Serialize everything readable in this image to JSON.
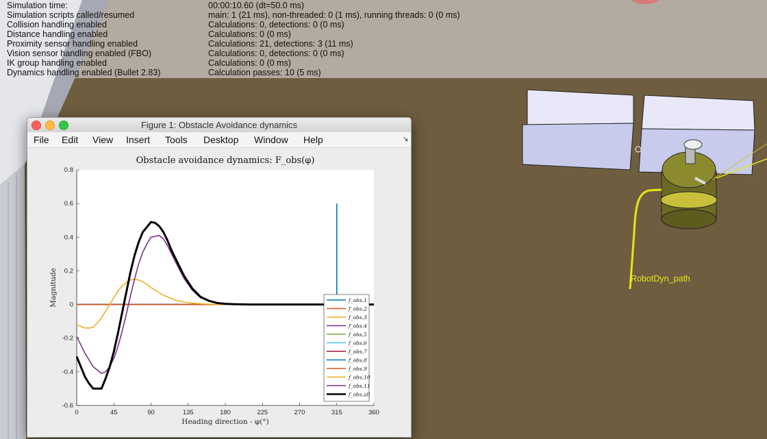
{
  "simulation_info": [
    {
      "label": "Simulation time:",
      "value": "00:00:10.60 (dt=50.0 ms)"
    },
    {
      "label": "Simulation scripts called/resumed",
      "value": "main: 1 (21 ms), non-threaded: 0 (1 ms), running threads: 0 (0 ms)"
    },
    {
      "label": "Collision handling enabled",
      "value": "Calculations: 0, detections: 0 (0 ms)"
    },
    {
      "label": "Distance handling enabled",
      "value": "Calculations: 0 (0 ms)"
    },
    {
      "label": "Proximity sensor handling enabled",
      "value": "Calculations: 21, detections: 3 (11 ms)"
    },
    {
      "label": "Vision sensor handling enabled (FBO)",
      "value": "Calculations: 0, detections: 0 (0 ms)"
    },
    {
      "label": "IK group handling enabled",
      "value": "Calculations: 0 (0 ms)"
    },
    {
      "label": "Dynamics handling enabled (Bullet 2.83)",
      "value": "Calculation passes: 10 (5 ms)"
    }
  ],
  "scene": {
    "path_label": "RobotDyn_path",
    "floor_color": "#6f5d40",
    "path_color": "#e6e61a",
    "obstacle_color": "#cfd0ee",
    "robot_color": "#8a8a2a"
  },
  "figure": {
    "title": "Figure 1: Obstacle Avoidance dynamics",
    "menu": [
      "File",
      "Edit",
      "View",
      "Insert",
      "Tools",
      "Desktop",
      "Window",
      "Help"
    ],
    "dock_icon": "dock-arrow-icon"
  },
  "chart_data": {
    "type": "line",
    "title": "Obstacle avoidance dynamics: F_obs(φ)",
    "xlabel": "Heading direction - φ(°)",
    "ylabel": "Magnitude",
    "xlim": [
      0,
      360
    ],
    "ylim": [
      -0.6,
      0.8
    ],
    "xticks": [
      0,
      45,
      90,
      135,
      180,
      225,
      270,
      315,
      360
    ],
    "yticks": [
      -0.6,
      -0.4,
      -0.2,
      0,
      0.2,
      0.4,
      0.6,
      0.8
    ],
    "grid": false,
    "legend_position": "bottom-right",
    "series": [
      {
        "name": "f_obs,1",
        "color": "#0072bd",
        "x": [
          0,
          360
        ],
        "y": [
          0,
          0
        ]
      },
      {
        "name": "f_obs,2",
        "color": "#d95319",
        "x": [
          0,
          360
        ],
        "y": [
          0,
          0
        ]
      },
      {
        "name": "f_obs,3",
        "color": "#edb120",
        "x": [
          0,
          360
        ],
        "y": [
          0,
          0
        ]
      },
      {
        "name": "f_obs,4",
        "color": "#7e2f8e",
        "x": [
          0,
          360
        ],
        "y": [
          0,
          0
        ]
      },
      {
        "name": "f_obs,5",
        "color": "#77ac30",
        "x": [
          0,
          360
        ],
        "y": [
          0,
          0
        ]
      },
      {
        "name": "f_obs,6",
        "color": "#4dbeee",
        "x": [
          0,
          360
        ],
        "y": [
          0,
          0
        ]
      },
      {
        "name": "f_obs,7",
        "color": "#a2142f",
        "x": [
          0,
          360
        ],
        "y": [
          0,
          0
        ]
      },
      {
        "name": "f_obs,8",
        "color": "#0072bd",
        "x": [
          0,
          360
        ],
        "y": [
          0,
          0
        ]
      },
      {
        "name": "f_obs,9",
        "color": "#d95319",
        "x": [
          0,
          360
        ],
        "y": [
          0,
          0
        ]
      },
      {
        "name": "f_obs,10",
        "color": "#edb120",
        "x": [
          0,
          5,
          10,
          15,
          20,
          25,
          30,
          35,
          40,
          45,
          50,
          55,
          60,
          65,
          70,
          75,
          80,
          85,
          90,
          95,
          100,
          105,
          110,
          115,
          120,
          130,
          140,
          150,
          160,
          170,
          180,
          190,
          200,
          210,
          360
        ],
        "y": [
          -0.12,
          -0.13,
          -0.14,
          -0.14,
          -0.135,
          -0.11,
          -0.08,
          -0.04,
          0.0,
          0.04,
          0.08,
          0.11,
          0.13,
          0.145,
          0.15,
          0.145,
          0.135,
          0.12,
          0.1,
          0.085,
          0.07,
          0.055,
          0.045,
          0.035,
          0.025,
          0.015,
          0.008,
          0.004,
          0.002,
          0.001,
          0.0,
          0.0,
          0.0,
          0.0,
          0.0
        ]
      },
      {
        "name": "f_obs,11",
        "color": "#7e2f8e",
        "x": [
          0,
          5,
          10,
          15,
          20,
          25,
          30,
          35,
          40,
          45,
          50,
          55,
          60,
          65,
          70,
          75,
          80,
          85,
          90,
          95,
          100,
          105,
          110,
          115,
          120,
          130,
          140,
          150,
          160,
          170,
          180,
          190,
          200,
          210,
          360
        ],
        "y": [
          -0.19,
          -0.24,
          -0.29,
          -0.33,
          -0.37,
          -0.39,
          -0.41,
          -0.4,
          -0.37,
          -0.32,
          -0.25,
          -0.16,
          -0.06,
          0.05,
          0.15,
          0.24,
          0.31,
          0.36,
          0.4,
          0.405,
          0.41,
          0.39,
          0.35,
          0.3,
          0.25,
          0.155,
          0.085,
          0.04,
          0.02,
          0.008,
          0.003,
          0.001,
          0.0,
          0.0,
          0.0
        ]
      },
      {
        "name": "f_obs,all",
        "color": "#000000",
        "x": [
          0,
          5,
          10,
          15,
          20,
          25,
          30,
          35,
          40,
          45,
          50,
          55,
          60,
          65,
          70,
          75,
          80,
          85,
          90,
          95,
          100,
          105,
          110,
          115,
          120,
          130,
          140,
          150,
          160,
          170,
          180,
          190,
          200,
          210,
          360
        ],
        "y": [
          -0.31,
          -0.37,
          -0.43,
          -0.47,
          -0.5,
          -0.5,
          -0.5,
          -0.44,
          -0.37,
          -0.28,
          -0.17,
          -0.05,
          0.07,
          0.19,
          0.29,
          0.37,
          0.43,
          0.46,
          0.49,
          0.485,
          0.465,
          0.43,
          0.38,
          0.32,
          0.27,
          0.17,
          0.095,
          0.045,
          0.022,
          0.009,
          0.004,
          0.002,
          0.001,
          0.0,
          0.0
        ]
      },
      {
        "name": "",
        "color": "#0072bd",
        "x": [
          315,
          315
        ],
        "y": [
          0,
          0.6
        ],
        "in_legend": false
      }
    ]
  }
}
